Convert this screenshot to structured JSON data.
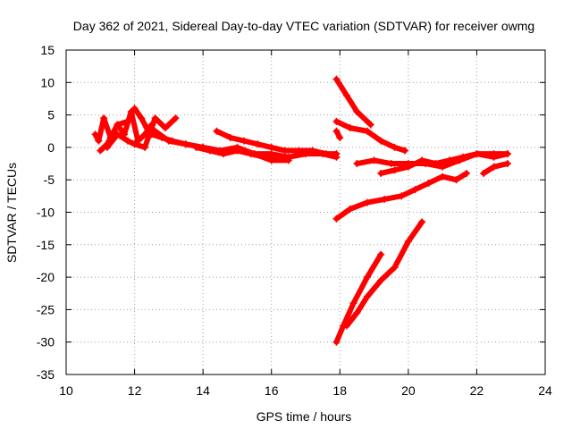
{
  "chart_data": {
    "type": "scatter",
    "title": "Day 362 of 2021, Sidereal Day-to-day VTEC variation (SDTVAR) for receiver owmg",
    "xlabel": "GPS time / hours",
    "ylabel": "SDTVAR / TECUs",
    "xlim": [
      10,
      24
    ],
    "ylim": [
      -35,
      15
    ],
    "xticks": [
      10,
      12,
      14,
      16,
      18,
      20,
      22,
      24
    ],
    "yticks": [
      -35,
      -30,
      -25,
      -20,
      -15,
      -10,
      -5,
      0,
      5,
      10,
      15
    ],
    "grid": true,
    "marker": "plus",
    "color": "#ff0000",
    "series": [
      {
        "x": [
          10.85,
          10.95,
          11.1,
          11.3,
          11.5,
          11.7,
          11.9,
          12.1,
          12.3,
          12.5
        ],
        "y": [
          2.0,
          1.0,
          4.5,
          1.5,
          3.5,
          2.0,
          5.5,
          1.0,
          2.0,
          3.5
        ]
      },
      {
        "x": [
          11.0,
          11.2,
          11.5,
          11.8,
          12.0,
          12.2,
          12.4
        ],
        "y": [
          -0.5,
          0.5,
          3.5,
          4.0,
          6.0,
          4.5,
          2.5
        ]
      },
      {
        "x": [
          11.2,
          11.5,
          11.8,
          12.0,
          12.3,
          12.6,
          12.9,
          13.2
        ],
        "y": [
          0.0,
          2.0,
          1.0,
          0.5,
          0.0,
          4.5,
          3.0,
          4.5
        ]
      },
      {
        "x": [
          12.5,
          12.8,
          13.1,
          13.5,
          14.0,
          14.5,
          15.0,
          15.5,
          16.0,
          16.5,
          17.0,
          17.5,
          17.9
        ],
        "y": [
          2.0,
          1.5,
          1.0,
          0.5,
          0.0,
          -0.5,
          -0.5,
          -1.0,
          -1.0,
          -1.5,
          -1.0,
          -1.0,
          -1.5
        ]
      },
      {
        "x": [
          12.6,
          13.0,
          13.5,
          14.0,
          14.5,
          15.0,
          15.5,
          16.0,
          16.5
        ],
        "y": [
          2.5,
          1.0,
          0.5,
          0.0,
          -0.5,
          0.0,
          -1.0,
          -2.0,
          -2.0
        ]
      },
      {
        "x": [
          14.4,
          14.8,
          15.2,
          15.6,
          16.0,
          16.4,
          16.8,
          17.2,
          17.6,
          17.9
        ],
        "y": [
          2.5,
          1.5,
          1.0,
          0.5,
          0.0,
          -0.5,
          -0.5,
          -0.5,
          -1.0,
          -1.0
        ]
      },
      {
        "x": [
          13.8,
          14.2,
          14.6,
          15.0,
          15.4,
          15.8,
          16.2
        ],
        "y": [
          0.0,
          -0.5,
          -1.0,
          -0.5,
          -1.0,
          -1.5,
          -1.5
        ]
      },
      {
        "x": [
          17.9,
          18.2,
          18.5,
          18.9
        ],
        "y": [
          10.5,
          8.0,
          5.5,
          3.5
        ]
      },
      {
        "x": [
          17.9,
          18.3,
          18.8,
          19.2,
          19.6,
          19.9
        ],
        "y": [
          4.0,
          3.0,
          2.5,
          1.0,
          0.0,
          -0.5
        ]
      },
      {
        "x": [
          17.9,
          18.0
        ],
        "y": [
          2.5,
          1.5
        ]
      },
      {
        "x": [
          18.5,
          19.0,
          19.5,
          20.0,
          20.5,
          21.0,
          21.5,
          22.0,
          22.5,
          22.9
        ],
        "y": [
          -2.5,
          -2.0,
          -2.5,
          -2.5,
          -2.5,
          -3.0,
          -2.0,
          -1.0,
          -1.0,
          -1.0
        ]
      },
      {
        "x": [
          19.2,
          19.6,
          20.0,
          20.4,
          20.8,
          21.2,
          21.6,
          22.0,
          22.5,
          22.9
        ],
        "y": [
          -4.0,
          -3.5,
          -3.0,
          -2.0,
          -2.5,
          -2.0,
          -1.5,
          -1.0,
          -1.5,
          -1.0
        ]
      },
      {
        "x": [
          22.2,
          22.5,
          22.9
        ],
        "y": [
          -4.0,
          -3.0,
          -2.5
        ]
      },
      {
        "x": [
          17.9,
          18.3,
          18.8,
          19.3,
          19.8,
          20.2,
          20.6,
          21.0,
          21.4,
          21.7
        ],
        "y": [
          -11.0,
          -9.5,
          -8.5,
          -8.0,
          -7.5,
          -6.5,
          -5.5,
          -4.5,
          -5.0,
          -4.0
        ]
      },
      {
        "x": [
          17.9,
          18.1,
          18.4,
          18.8,
          19.2
        ],
        "y": [
          -30.0,
          -27.5,
          -24.0,
          -20.0,
          -16.5
        ]
      },
      {
        "x": [
          18.2,
          18.5,
          18.8,
          19.2,
          19.6,
          20.0,
          20.4
        ],
        "y": [
          -27.5,
          -25.5,
          -23.0,
          -20.5,
          -18.5,
          -14.5,
          -11.5
        ]
      }
    ]
  }
}
